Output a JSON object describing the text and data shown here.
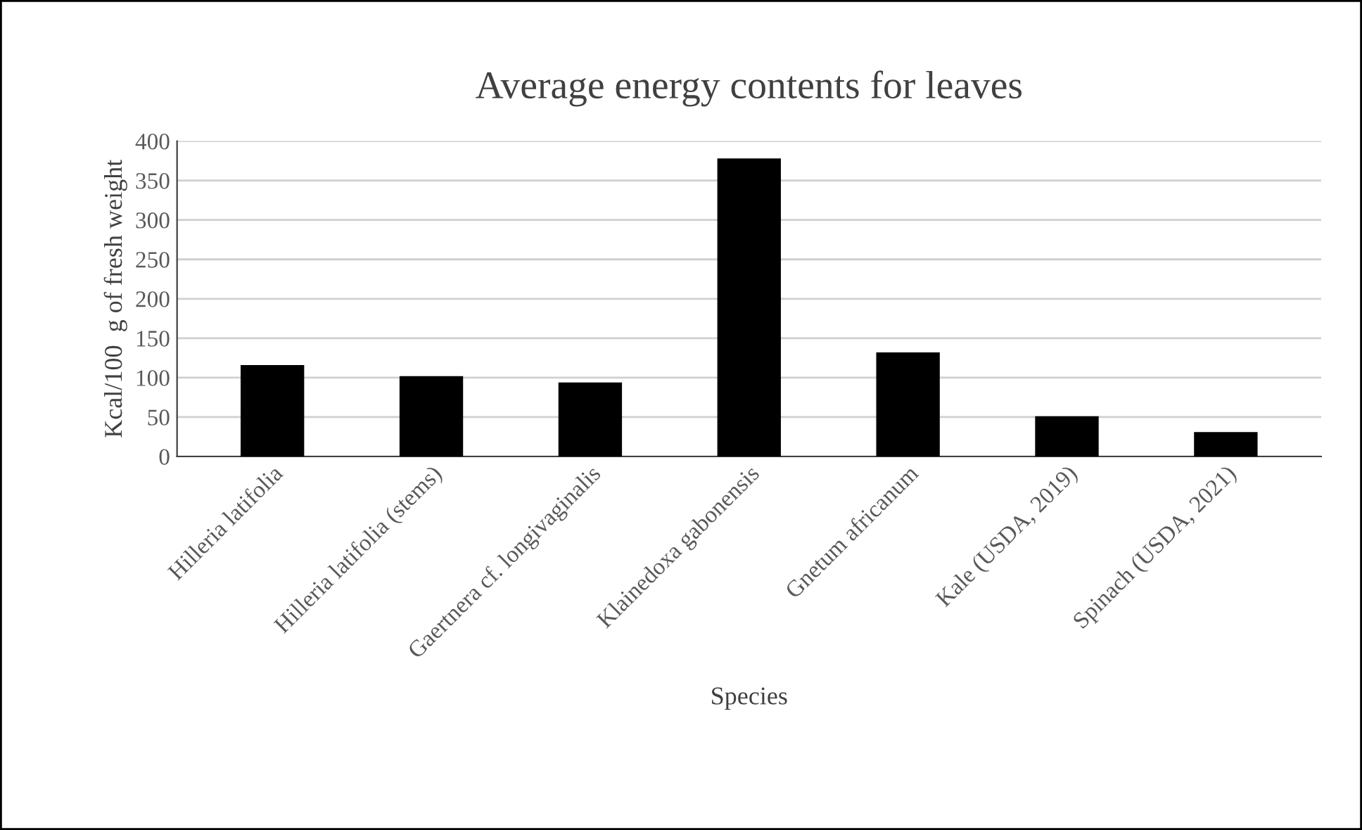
{
  "chart_data": {
    "type": "bar",
    "title": "Average energy contents for leaves",
    "xlabel": "Species",
    "ylabel": "Kcal/100  g of fresh weight",
    "categories": [
      "Hilleria latifolia",
      "Hilleria latifolia (stems)",
      "Gaertnera cf. longivaginalis",
      "Klainedoxa gabonensis",
      "Gnetum africanum",
      "Kale (USDA, 2019)",
      "Spinach (USDA, 2021)"
    ],
    "values": [
      116,
      102,
      94,
      378,
      132,
      51,
      31
    ],
    "color": "#000000",
    "ylim": [
      0,
      400
    ],
    "yticks": [
      0,
      50,
      100,
      150,
      200,
      250,
      300,
      350,
      400
    ],
    "grid": "y",
    "legend": false
  }
}
